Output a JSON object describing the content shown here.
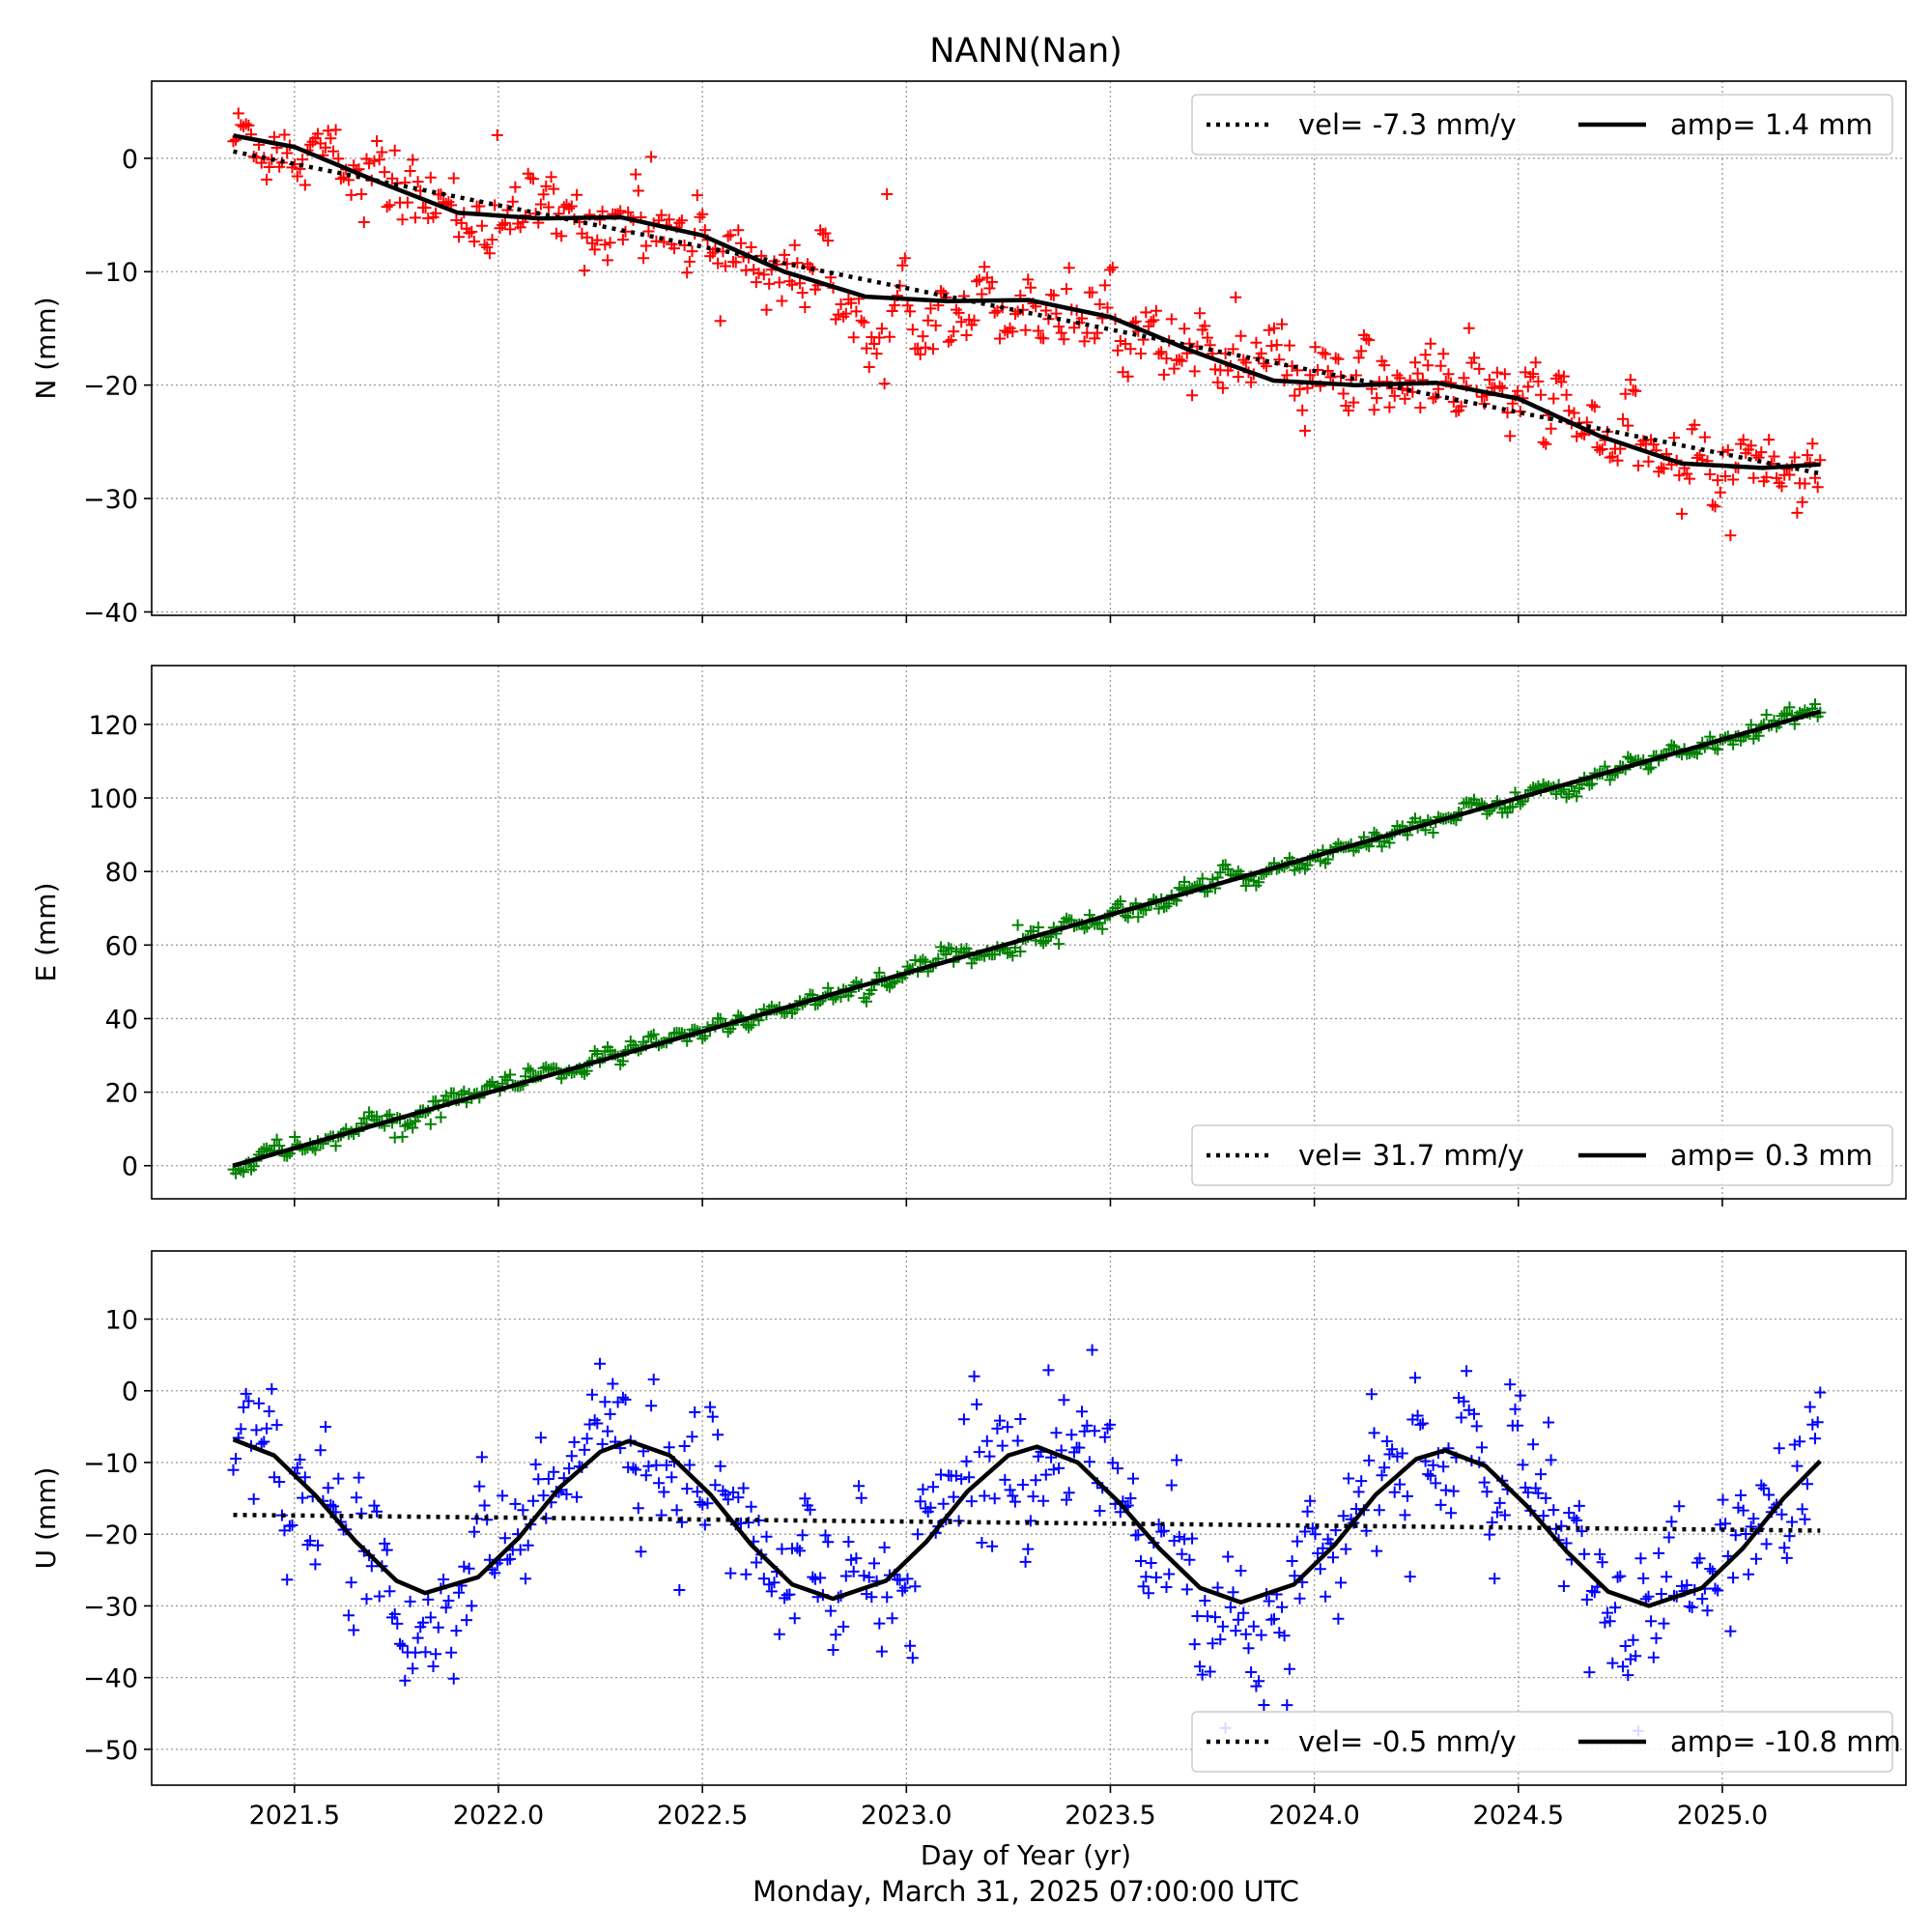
{
  "chart_data": {
    "type": "scatter",
    "title": "NANN(Nan)",
    "xlabel": "Day of Year (yr)",
    "footer": "Monday, March 31, 2025 07:00:00 UTC",
    "xlim": [
      2021.15,
      2025.45
    ],
    "xticks": [
      2021.5,
      2022.0,
      2022.5,
      2023.0,
      2023.5,
      2024.0,
      2024.5,
      2025.0
    ],
    "xtick_labels": [
      "2021.5",
      "2022.0",
      "2022.5",
      "2023.0",
      "2023.5",
      "2024.0",
      "2024.5",
      "2025.0"
    ],
    "x_start": 2021.35,
    "x_end": 2025.24,
    "grid": true,
    "panels": [
      {
        "id": "N",
        "ylabel": "N (mm)",
        "color": "#ff0000",
        "ylim": [
          -40.3,
          6.8
        ],
        "yticks": [
          0,
          -10,
          -20,
          -30,
          -40
        ],
        "ytick_labels": [
          "0",
          "−10",
          "−20",
          "−30",
          "−40"
        ],
        "legend_position": "top-right",
        "legend": {
          "vel_label": "vel= -7.3 mm/y",
          "amp_label": "amp= 1.4 mm"
        },
        "velocity_mm_per_yr": -7.3,
        "amplitude_mm": 1.4,
        "fit_solid": [
          [
            2021.35,
            2.0
          ],
          [
            2021.5,
            1.0
          ],
          [
            2021.7,
            -2.0
          ],
          [
            2021.9,
            -4.8
          ],
          [
            2022.1,
            -5.3
          ],
          [
            2022.3,
            -5.2
          ],
          [
            2022.5,
            -6.8
          ],
          [
            2022.7,
            -10.0
          ],
          [
            2022.9,
            -12.2
          ],
          [
            2023.1,
            -12.6
          ],
          [
            2023.3,
            -12.5
          ],
          [
            2023.5,
            -14.0
          ],
          [
            2023.7,
            -17.0
          ],
          [
            2023.9,
            -19.6
          ],
          [
            2024.1,
            -20.0
          ],
          [
            2024.3,
            -19.8
          ],
          [
            2024.5,
            -21.2
          ],
          [
            2024.7,
            -24.5
          ],
          [
            2024.9,
            -26.9
          ],
          [
            2025.1,
            -27.3
          ],
          [
            2025.24,
            -27.0
          ]
        ],
        "fit_dotted": [
          [
            2021.35,
            0.6
          ],
          [
            2025.24,
            -27.8
          ]
        ],
        "residual_sd": 1.6
      },
      {
        "id": "E",
        "ylabel": "E (mm)",
        "color": "#008000",
        "ylim": [
          -9,
          136
        ],
        "yticks": [
          0,
          20,
          40,
          60,
          80,
          100,
          120
        ],
        "ytick_labels": [
          "0",
          "20",
          "40",
          "60",
          "80",
          "100",
          "120"
        ],
        "legend_position": "bottom-right",
        "legend": {
          "vel_label": "vel= 31.7 mm/y",
          "amp_label": "amp= 0.3 mm"
        },
        "velocity_mm_per_yr": 31.7,
        "amplitude_mm": 0.3,
        "fit_solid": [
          [
            2021.35,
            0.0
          ],
          [
            2025.24,
            123.5
          ]
        ],
        "fit_dotted": [
          [
            2021.35,
            0.0
          ],
          [
            2025.24,
            123.5
          ]
        ],
        "residual_sd": 1.3
      },
      {
        "id": "U",
        "ylabel": "U (mm)",
        "color": "#0000ff",
        "ylim": [
          -55,
          19.5
        ],
        "yticks": [
          10,
          0,
          -10,
          -20,
          -30,
          -40,
          -50
        ],
        "ytick_labels": [
          "10",
          "0",
          "−10",
          "−20",
          "−30",
          "−40",
          "−50"
        ],
        "legend_position": "bottom-right",
        "legend": {
          "vel_label": "vel= -0.5 mm/y",
          "amp_label": "amp= -10.8 mm"
        },
        "velocity_mm_per_yr": -0.5,
        "amplitude_mm": -10.8,
        "fit_solid": [
          [
            2021.35,
            -6.8
          ],
          [
            2021.45,
            -9.0
          ],
          [
            2021.55,
            -14.5
          ],
          [
            2021.65,
            -21.0
          ],
          [
            2021.75,
            -26.5
          ],
          [
            2021.82,
            -28.2
          ],
          [
            2021.95,
            -26.0
          ],
          [
            2022.05,
            -20.5
          ],
          [
            2022.15,
            -13.5
          ],
          [
            2022.25,
            -8.5
          ],
          [
            2022.32,
            -7.0
          ],
          [
            2022.42,
            -9.0
          ],
          [
            2022.52,
            -14.5
          ],
          [
            2022.62,
            -21.5
          ],
          [
            2022.72,
            -27.0
          ],
          [
            2022.82,
            -29.0
          ],
          [
            2022.95,
            -26.5
          ],
          [
            2023.05,
            -21.0
          ],
          [
            2023.15,
            -14.0
          ],
          [
            2023.25,
            -9.0
          ],
          [
            2023.32,
            -7.8
          ],
          [
            2023.42,
            -10.0
          ],
          [
            2023.52,
            -15.5
          ],
          [
            2023.62,
            -22.0
          ],
          [
            2023.72,
            -27.5
          ],
          [
            2023.82,
            -29.5
          ],
          [
            2023.95,
            -27.0
          ],
          [
            2024.05,
            -21.5
          ],
          [
            2024.15,
            -14.5
          ],
          [
            2024.25,
            -9.5
          ],
          [
            2024.32,
            -8.3
          ],
          [
            2024.42,
            -10.5
          ],
          [
            2024.52,
            -16.0
          ],
          [
            2024.62,
            -22.5
          ],
          [
            2024.72,
            -28.0
          ],
          [
            2024.82,
            -30.0
          ],
          [
            2024.95,
            -27.5
          ],
          [
            2025.05,
            -22.0
          ],
          [
            2025.15,
            -15.0
          ],
          [
            2025.24,
            -9.8
          ]
        ],
        "fit_dotted": [
          [
            2021.35,
            -17.3
          ],
          [
            2025.24,
            -19.5
          ]
        ],
        "residual_sd": 5.0
      }
    ]
  }
}
